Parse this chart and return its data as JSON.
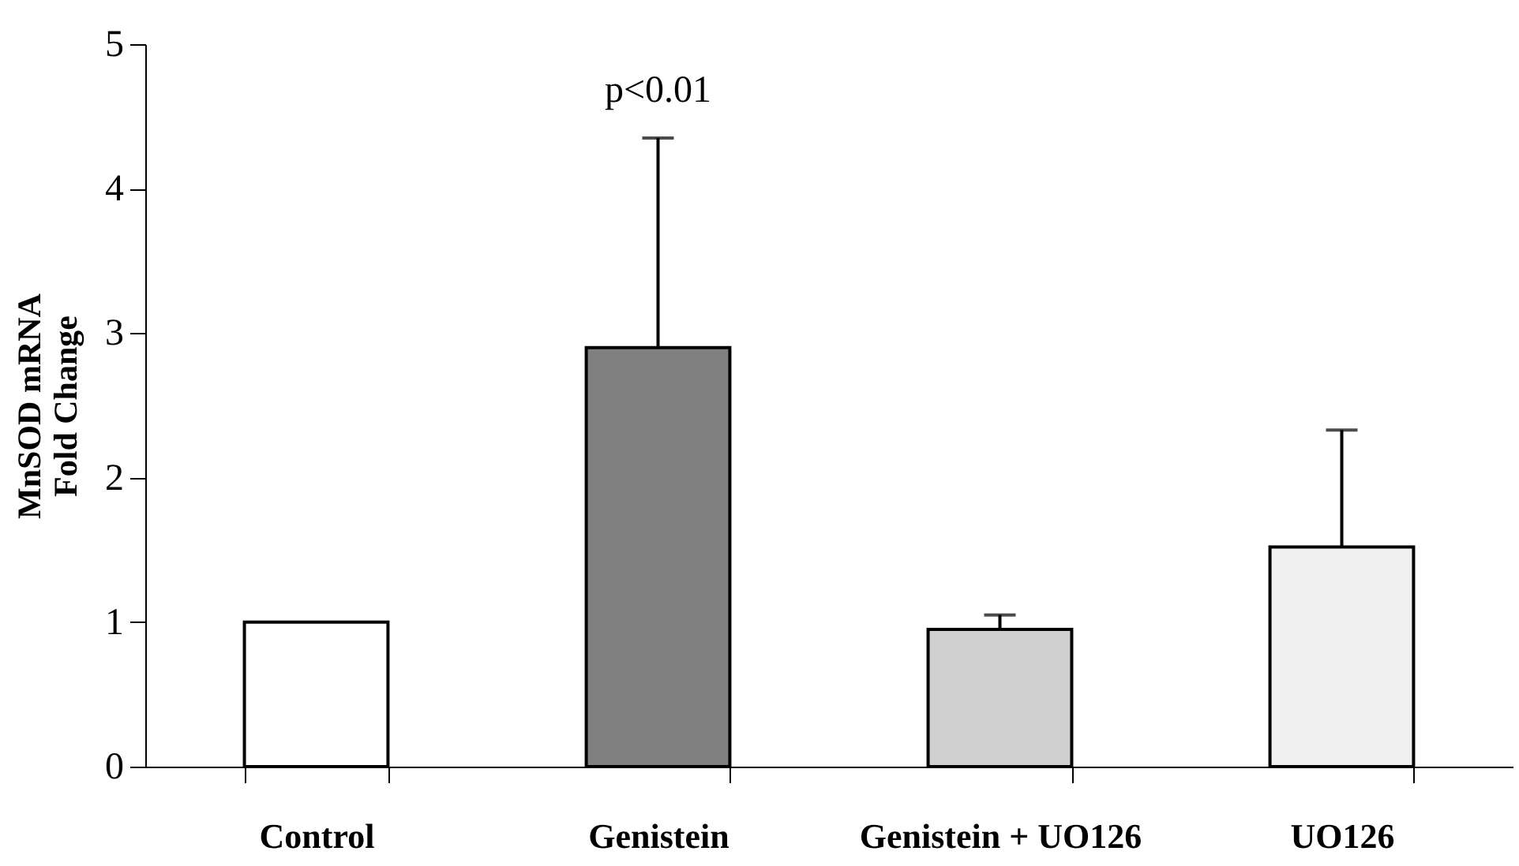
{
  "chart_data": {
    "type": "bar",
    "ylabel": "MnSOD mRNA\nFold Change",
    "categories": [
      "Control",
      "Genistein",
      "Genistein + UO126",
      "UO126"
    ],
    "values": [
      1.0,
      2.9,
      0.95,
      1.52
    ],
    "colors": [
      "#ffffff",
      "#808080",
      "#d0d0d0",
      "#f0f0f0"
    ],
    "errors": [
      null,
      [
        2.9,
        4.35
      ],
      [
        0.95,
        1.05
      ],
      [
        1.52,
        2.33
      ]
    ],
    "ylim": [
      0,
      5
    ],
    "yticks": [
      0,
      1,
      2,
      3,
      4,
      5
    ],
    "grid": false,
    "annotations": [
      {
        "text": "p<0.01",
        "x": "Genistein",
        "y": 4.35
      }
    ]
  }
}
